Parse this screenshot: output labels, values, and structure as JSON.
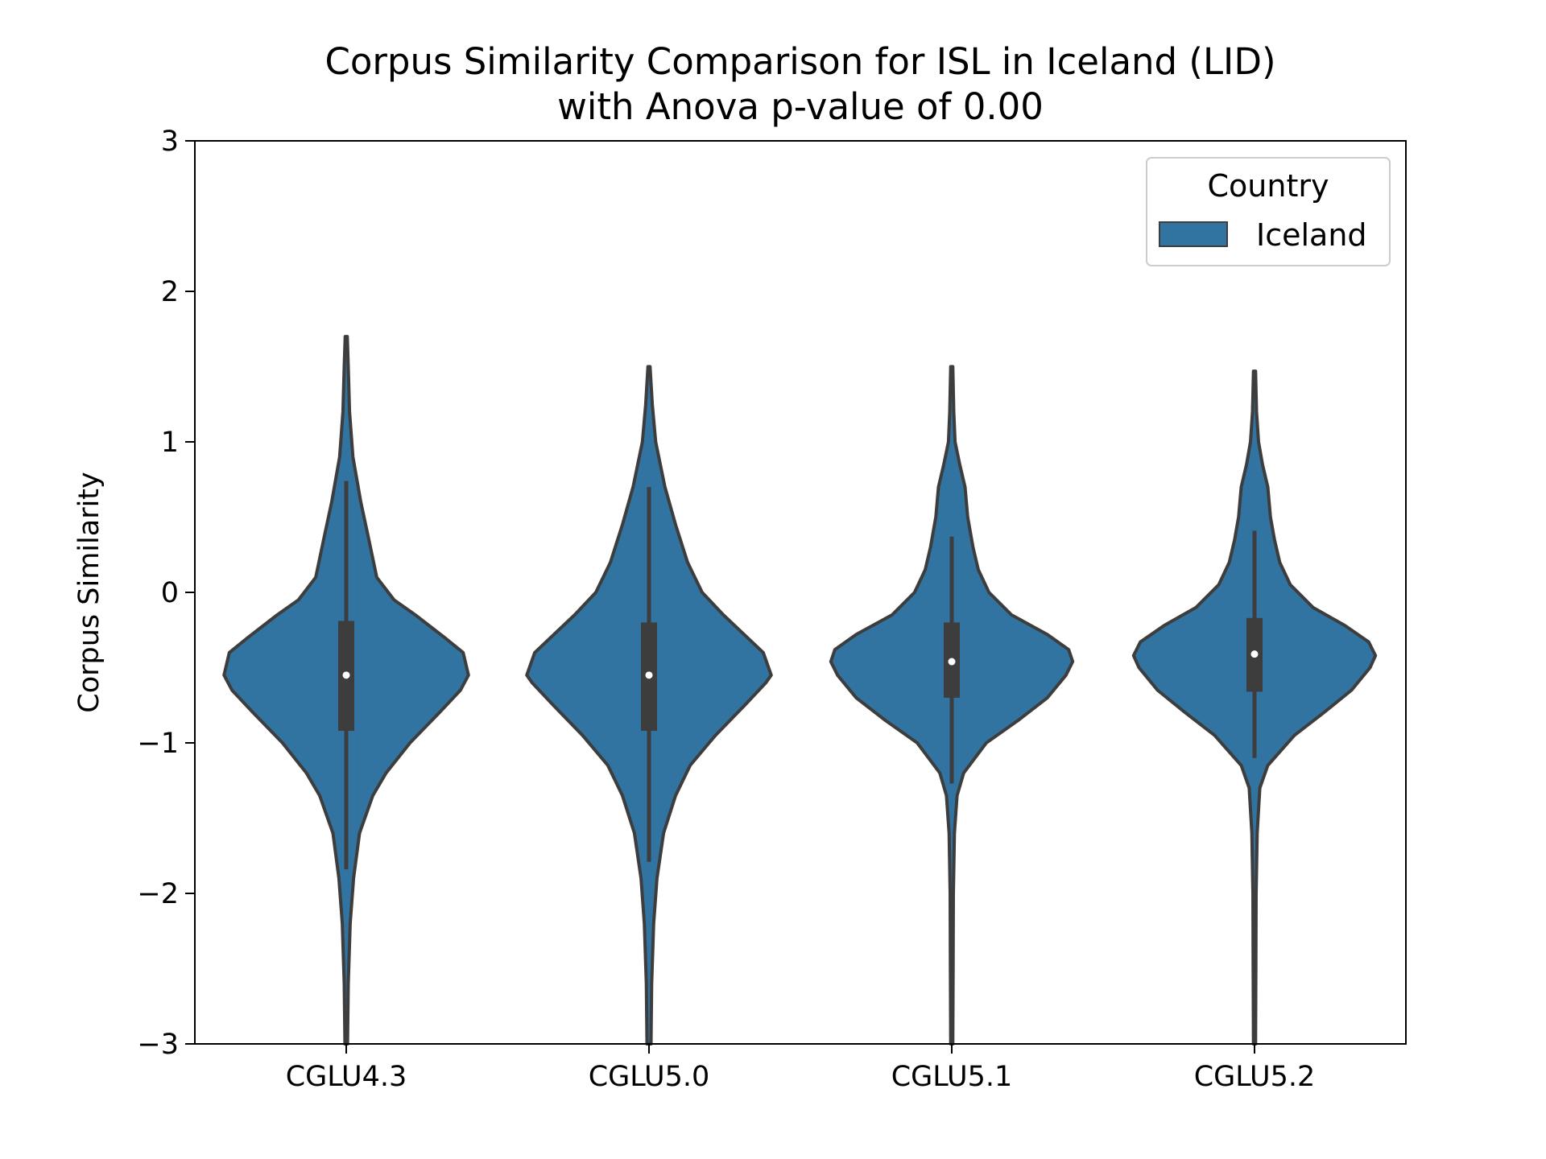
{
  "chart_data": {
    "type": "violin",
    "title": "Corpus Similarity Comparison for ISL in Iceland (LID)",
    "subtitle": "with Anova p-value of 0.00",
    "xlabel": "",
    "ylabel": "Corpus Similarity",
    "ylim": [
      -3,
      3
    ],
    "yticks": [
      -3,
      -2,
      -1,
      0,
      1,
      2,
      3
    ],
    "ytick_labels": [
      "−3",
      "−2",
      "−1",
      "0",
      "1",
      "2",
      "3"
    ],
    "grid": false,
    "categories": [
      "CGLU4.3",
      "CGLU5.0",
      "CGLU5.1",
      "CGLU5.2"
    ],
    "legend": {
      "title": "Country",
      "placement": "top-right",
      "entries": [
        {
          "label": "Iceland",
          "color": "#3274a1"
        }
      ]
    },
    "colors": {
      "fill": "#3274a1",
      "edge": "#3d3d3d",
      "box": "#3d3d3d",
      "median": "#ffffff"
    },
    "series": [
      {
        "name": "Iceland",
        "violins": [
          {
            "category": "CGLU4.3",
            "min": -3.0,
            "max": 1.7,
            "q1": -0.92,
            "median": -0.55,
            "q3": -0.19,
            "whisker_low": -1.84,
            "whisker_high": 0.74,
            "density": [
              [
                -3.0,
                0.01
              ],
              [
                -2.6,
                0.015
              ],
              [
                -2.2,
                0.03
              ],
              [
                -1.9,
                0.055
              ],
              [
                -1.6,
                0.1
              ],
              [
                -1.35,
                0.2
              ],
              [
                -1.2,
                0.3
              ],
              [
                -1.0,
                0.48
              ],
              [
                -0.8,
                0.7
              ],
              [
                -0.65,
                0.86
              ],
              [
                -0.55,
                0.92
              ],
              [
                -0.4,
                0.88
              ],
              [
                -0.3,
                0.74
              ],
              [
                -0.15,
                0.52
              ],
              [
                -0.05,
                0.36
              ],
              [
                0.1,
                0.23
              ],
              [
                0.35,
                0.17
              ],
              [
                0.6,
                0.11
              ],
              [
                0.9,
                0.05
              ],
              [
                1.2,
                0.025
              ],
              [
                1.5,
                0.015
              ],
              [
                1.7,
                0.008
              ]
            ]
          },
          {
            "category": "CGLU5.0",
            "min": -3.0,
            "max": 1.5,
            "q1": -0.92,
            "median": -0.55,
            "q3": -0.2,
            "whisker_low": -1.79,
            "whisker_high": 0.7,
            "density": [
              [
                -3.0,
                0.015
              ],
              [
                -2.6,
                0.02
              ],
              [
                -2.2,
                0.035
              ],
              [
                -1.9,
                0.06
              ],
              [
                -1.6,
                0.11
              ],
              [
                -1.35,
                0.2
              ],
              [
                -1.15,
                0.31
              ],
              [
                -0.95,
                0.5
              ],
              [
                -0.75,
                0.72
              ],
              [
                -0.6,
                0.88
              ],
              [
                -0.55,
                0.92
              ],
              [
                -0.4,
                0.86
              ],
              [
                -0.3,
                0.74
              ],
              [
                -0.15,
                0.56
              ],
              [
                0.0,
                0.4
              ],
              [
                0.2,
                0.29
              ],
              [
                0.45,
                0.2
              ],
              [
                0.7,
                0.12
              ],
              [
                1.0,
                0.05
              ],
              [
                1.25,
                0.025
              ],
              [
                1.5,
                0.008
              ]
            ]
          },
          {
            "category": "CGLU5.1",
            "min": -3.0,
            "max": 1.5,
            "q1": -0.7,
            "median": -0.46,
            "q3": -0.2,
            "whisker_low": -1.27,
            "whisker_high": 0.37,
            "density": [
              [
                -3.0,
                0.008
              ],
              [
                -2.5,
                0.01
              ],
              [
                -2.0,
                0.012
              ],
              [
                -1.6,
                0.02
              ],
              [
                -1.35,
                0.04
              ],
              [
                -1.2,
                0.09
              ],
              [
                -1.0,
                0.26
              ],
              [
                -0.85,
                0.5
              ],
              [
                -0.7,
                0.72
              ],
              [
                -0.55,
                0.86
              ],
              [
                -0.46,
                0.91
              ],
              [
                -0.38,
                0.88
              ],
              [
                -0.28,
                0.72
              ],
              [
                -0.15,
                0.45
              ],
              [
                0.0,
                0.28
              ],
              [
                0.15,
                0.2
              ],
              [
                0.3,
                0.16
              ],
              [
                0.5,
                0.12
              ],
              [
                0.7,
                0.1
              ],
              [
                0.85,
                0.06
              ],
              [
                1.0,
                0.025
              ],
              [
                1.2,
                0.015
              ],
              [
                1.5,
                0.008
              ]
            ]
          },
          {
            "category": "CGLU5.2",
            "min": -3.0,
            "max": 1.47,
            "q1": -0.66,
            "median": -0.41,
            "q3": -0.17,
            "whisker_low": -1.1,
            "whisker_high": 0.41,
            "density": [
              [
                -3.0,
                0.008
              ],
              [
                -2.5,
                0.01
              ],
              [
                -2.0,
                0.012
              ],
              [
                -1.6,
                0.02
              ],
              [
                -1.3,
                0.04
              ],
              [
                -1.15,
                0.1
              ],
              [
                -0.95,
                0.3
              ],
              [
                -0.8,
                0.52
              ],
              [
                -0.65,
                0.73
              ],
              [
                -0.5,
                0.87
              ],
              [
                -0.42,
                0.91
              ],
              [
                -0.33,
                0.86
              ],
              [
                -0.22,
                0.68
              ],
              [
                -0.1,
                0.44
              ],
              [
                0.05,
                0.27
              ],
              [
                0.2,
                0.19
              ],
              [
                0.35,
                0.15
              ],
              [
                0.5,
                0.12
              ],
              [
                0.7,
                0.1
              ],
              [
                0.85,
                0.06
              ],
              [
                1.0,
                0.03
              ],
              [
                1.2,
                0.015
              ],
              [
                1.47,
                0.008
              ]
            ]
          }
        ]
      }
    ]
  }
}
